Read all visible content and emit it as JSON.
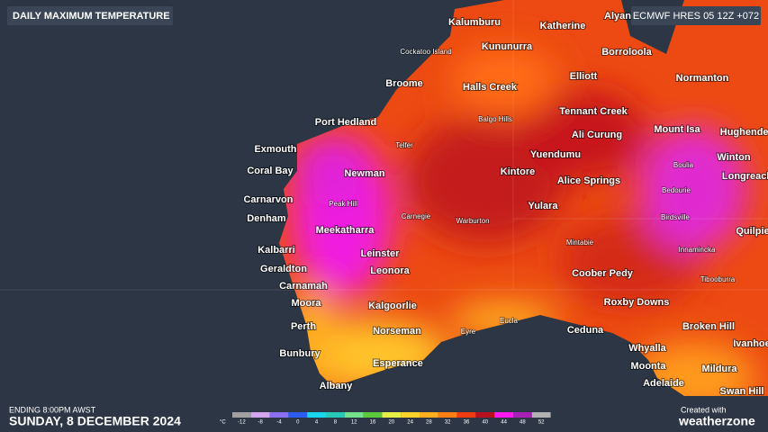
{
  "header": {
    "title": "DAILY MAXIMUM TEMPERATURE",
    "model": "ECMWF HRES 05 12Z +072"
  },
  "places": [
    {
      "name": "Kalumburu"
    },
    {
      "name": "Katherine"
    },
    {
      "name": "Alyan"
    },
    {
      "name": "Kununurra"
    },
    {
      "name": "Borroloola"
    },
    {
      "name": "Broome"
    },
    {
      "name": "Halls Creek"
    },
    {
      "name": "Elliott"
    },
    {
      "name": "Normanton"
    },
    {
      "name": "Port Hedland"
    },
    {
      "name": "Tennant Creek"
    },
    {
      "name": "Mount Isa"
    },
    {
      "name": "Hughenden"
    },
    {
      "name": "Exmouth"
    },
    {
      "name": "Ali Curung"
    },
    {
      "name": "Winton"
    },
    {
      "name": "Coral Bay"
    },
    {
      "name": "Newman"
    },
    {
      "name": "Yuendumu"
    },
    {
      "name": "Kintore"
    },
    {
      "name": "Longreach"
    },
    {
      "name": "Carnarvon"
    },
    {
      "name": "Alice Springs"
    },
    {
      "name": "Yulara"
    },
    {
      "name": "Denham"
    },
    {
      "name": "Meekatharra"
    },
    {
      "name": "Quilpie"
    },
    {
      "name": "Kalbarri"
    },
    {
      "name": "Leinster"
    },
    {
      "name": "Geraldton"
    },
    {
      "name": "Leonora"
    },
    {
      "name": "Coober Pedy"
    },
    {
      "name": "Carnamah"
    },
    {
      "name": "Moora"
    },
    {
      "name": "Kalgoorlie"
    },
    {
      "name": "Roxby Downs"
    },
    {
      "name": "Perth"
    },
    {
      "name": "Norseman"
    },
    {
      "name": "Ceduna"
    },
    {
      "name": "Broken Hill"
    },
    {
      "name": "Ivanhoe"
    },
    {
      "name": "Bunbury"
    },
    {
      "name": "Whyalla"
    },
    {
      "name": "Esperance"
    },
    {
      "name": "Moonta"
    },
    {
      "name": "Mildura"
    },
    {
      "name": "Albany"
    },
    {
      "name": "Adelaide"
    },
    {
      "name": "Swan Hill"
    },
    {
      "name": "Cockatoo Island"
    },
    {
      "name": "Balgo Hills"
    },
    {
      "name": "Telfer"
    },
    {
      "name": "Boulia"
    },
    {
      "name": "Peak Hill"
    },
    {
      "name": "Bedourie"
    },
    {
      "name": "Carnegie"
    },
    {
      "name": "Warburton"
    },
    {
      "name": "Birdsville"
    },
    {
      "name": "Mintabie"
    },
    {
      "name": "Innamincka"
    },
    {
      "name": "Tibooburra"
    },
    {
      "name": "Eucla"
    },
    {
      "name": "Eyre"
    }
  ],
  "legend": {
    "unit": "°C",
    "ticks": [
      -12,
      -8,
      -4,
      0,
      4,
      8,
      12,
      16,
      20,
      24,
      28,
      32,
      36,
      40,
      44,
      48,
      52
    ],
    "colors": [
      "#a0a0a0",
      "#d4a6f0",
      "#8a6ff0",
      "#2c5cf0",
      "#19d6f0",
      "#26c8b8",
      "#73e08c",
      "#5cc83c",
      "#e6ef45",
      "#ffd52a",
      "#ffae1e",
      "#ff7f14",
      "#ee3c10",
      "#b8101e",
      "#ff18ef",
      "#a820b8",
      "#b0b0b0"
    ]
  },
  "footer": {
    "ending": "ENDING 8:00PM AWST",
    "date": "SUNDAY, 8 DECEMBER 2024",
    "created_with": "Created with",
    "brand": "weatherzone"
  }
}
